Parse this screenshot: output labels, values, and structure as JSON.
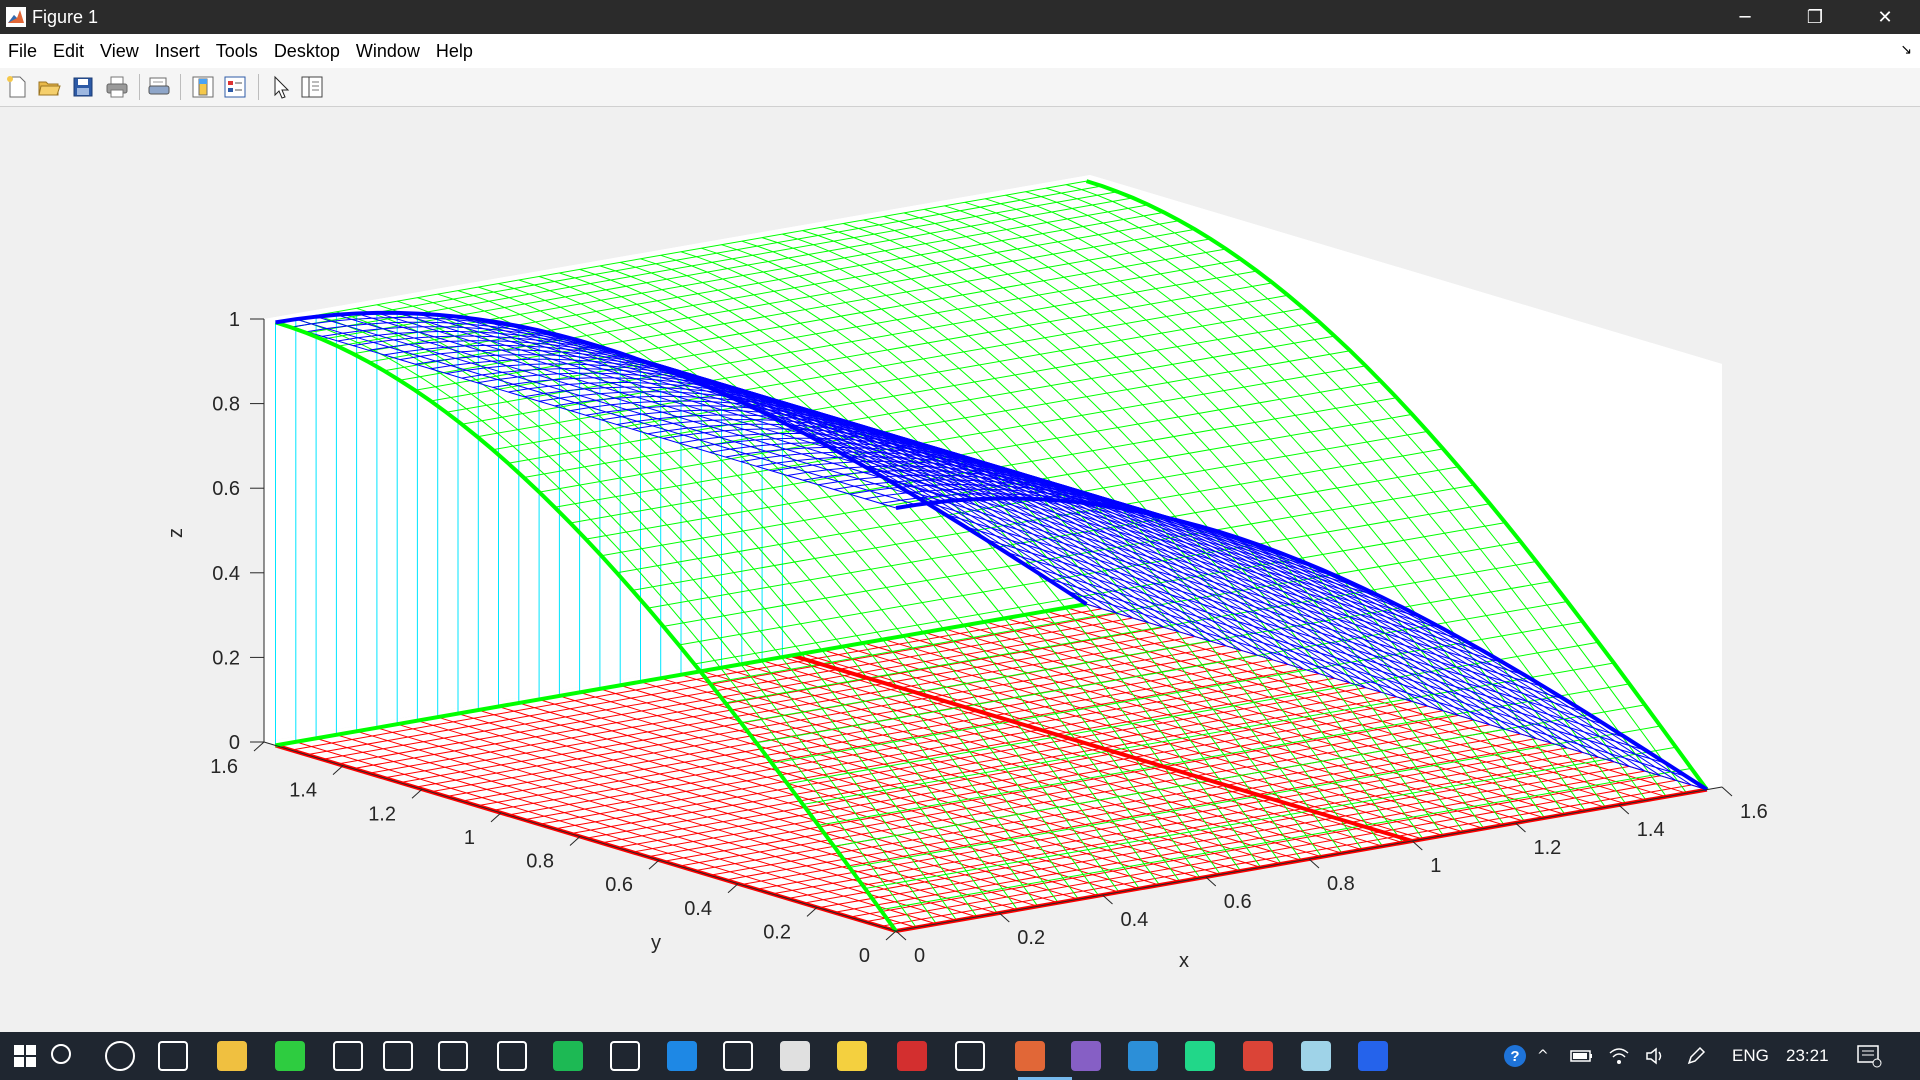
{
  "window": {
    "title": "Figure 1",
    "minimize_glyph": "─",
    "maximize_glyph": "❐",
    "close_glyph": "✕"
  },
  "menu": {
    "items": [
      "File",
      "Edit",
      "View",
      "Insert",
      "Tools",
      "Desktop",
      "Window",
      "Help"
    ],
    "dock_glyph": "↘"
  },
  "toolbar": {
    "buttons": [
      "new-figure-icon",
      "open-file-icon",
      "save-icon",
      "print-icon",
      "print-preview-icon",
      "colorbar-icon",
      "legend-icon",
      "select-pointer-icon",
      "property-inspector-icon"
    ]
  },
  "chart_data": {
    "type": "surface-3d",
    "title": "",
    "xlabel": "x",
    "ylabel": "y",
    "zlabel": "z",
    "xlim": [
      0,
      1.6
    ],
    "ylim": [
      0,
      1.6
    ],
    "zlim": [
      0,
      1
    ],
    "xticks": [
      "0",
      "0.2",
      "0.4",
      "0.6",
      "0.8",
      "1",
      "1.2",
      "1.4",
      "1.6"
    ],
    "yticks": [
      "0",
      "0.2",
      "0.4",
      "0.6",
      "0.8",
      "1",
      "1.2",
      "1.4",
      "1.6"
    ],
    "zticks": [
      "0",
      "0.2",
      "0.4",
      "0.6",
      "0.8",
      "1"
    ],
    "series": [
      {
        "kind": "mesh",
        "function": "z = cos(x) over y",
        "x_range": [
          0,
          1.571
        ],
        "y_range": [
          0,
          1.571
        ],
        "color": "#0000ff"
      },
      {
        "kind": "mesh",
        "function": "z = sin(y) over x",
        "x_range": [
          0,
          1.571
        ],
        "y_range": [
          0,
          1.571
        ],
        "color": "#00ff00"
      },
      {
        "kind": "mesh",
        "function": "z = 0 plane",
        "x_range": [
          0,
          1.571
        ],
        "y_range": [
          0,
          1.571
        ],
        "color": "#ff0000"
      },
      {
        "kind": "stems",
        "function": "vertical lines from z = cos(x) at y = 1.571 down to 0",
        "color": "#00ffff"
      },
      {
        "kind": "line",
        "function": "z = cos(x) at y = 1.571",
        "color": "#0000ff",
        "bold": true
      },
      {
        "kind": "line",
        "function": "z = cos(x) at y = 0",
        "color": "#0000ff",
        "bold": true
      },
      {
        "kind": "line",
        "function": "z = sin(y) at x = 1.571",
        "color": "#00ff00",
        "bold": true
      },
      {
        "kind": "line",
        "function": "z = sin(y) at x = 0",
        "color": "#00ff00",
        "bold": true
      },
      {
        "kind": "line",
        "function": "z = 0 edges at x = 0, x = 1, y = 0, y = 1.571",
        "color": "#ff0000",
        "bold": true
      }
    ]
  },
  "taskbar": {
    "start": "start-menu-icon",
    "apps": [
      "search-icon",
      "cortana-icon",
      "task-view-icon",
      "file-explorer-icon",
      "app-plus-icon",
      "settings-icon",
      "store-icon",
      "video-editor-icon",
      "media-player-icon",
      "spotify-icon",
      "alarm-clock-icon",
      "edge-icon",
      "notion-icon",
      "calculator-icon",
      "sticky-notes-icon",
      "acrobat-icon",
      "document-tool-icon",
      "matlab-icon",
      "visual-studio-icon",
      "vscode-icon",
      "pycharm-icon",
      "chrome-icon",
      "eraser-icon",
      "vpn-app-icon"
    ],
    "tray": {
      "language": "ENG",
      "time": "23:21"
    }
  }
}
